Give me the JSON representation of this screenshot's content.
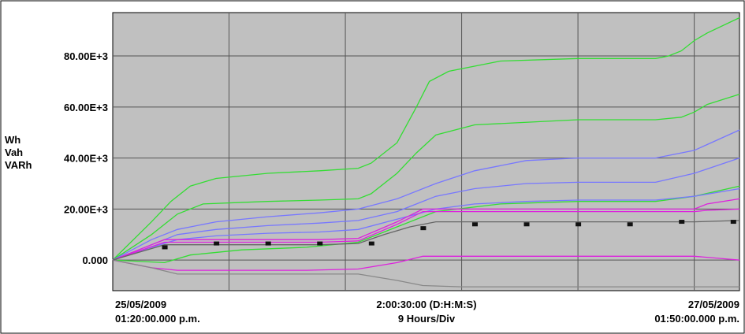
{
  "chart_data": {
    "type": "line",
    "title": "",
    "ylabel_lines": [
      "Wh",
      "Vah",
      "VARh"
    ],
    "ylim": [
      -12000,
      97000
    ],
    "yticks": [
      {
        "value": 0,
        "label": "0.000"
      },
      {
        "value": 20000,
        "label": "20.00E+3"
      },
      {
        "value": 40000,
        "label": "40.00E+3"
      },
      {
        "value": 60000,
        "label": "60.00E+3"
      },
      {
        "value": 80000,
        "label": "80.00E+3"
      }
    ],
    "xlim": [
      0,
      48.5
    ],
    "x_unit": "hours",
    "x_gridlines": [
      9,
      18,
      27,
      36,
      45
    ],
    "x_labels": {
      "start_date": "25/05/2009",
      "start_time": "01:20:00.000 p.m.",
      "span": "2:00:30:00 (D:H:M:S)",
      "div": "9 Hours/Div",
      "end_date": "27/05/2009",
      "end_time": "01:50:00.000 p.m."
    },
    "background": "#c0c0c0",
    "grid": true,
    "series": [
      {
        "color": "#33dd33",
        "x": [
          0,
          3,
          4.5,
          6,
          8,
          12,
          16,
          19,
          20,
          22,
          23.5,
          24.5,
          26,
          30,
          36,
          42,
          43,
          44,
          45,
          46,
          48.5
        ],
        "y": [
          0,
          15000,
          23000,
          29000,
          32000,
          34000,
          35000,
          36000,
          38000,
          46000,
          60000,
          70000,
          74000,
          78000,
          79000,
          79000,
          80000,
          82000,
          86000,
          89000,
          95000
        ]
      },
      {
        "color": "#33dd33",
        "x": [
          0,
          3,
          5,
          7,
          12,
          16,
          19,
          20,
          22,
          23.5,
          25,
          28,
          36,
          42,
          44,
          45,
          46,
          48.5
        ],
        "y": [
          0,
          10000,
          18000,
          22000,
          23000,
          23500,
          24000,
          26000,
          34000,
          42000,
          49000,
          53000,
          55000,
          55000,
          56000,
          58000,
          61000,
          65000
        ]
      },
      {
        "color": "#33dd33",
        "x": [
          0,
          4,
          6,
          10,
          15,
          19,
          22,
          25,
          30,
          36,
          42,
          45,
          48.5
        ],
        "y": [
          0,
          -1000,
          2000,
          4000,
          5000,
          7000,
          13000,
          19000,
          22000,
          23000,
          23000,
          25000,
          29000
        ]
      },
      {
        "color": "#7777ff",
        "x": [
          0,
          3,
          5,
          8,
          12,
          16,
          19,
          22,
          25,
          28,
          32,
          36,
          42,
          45,
          48.5
        ],
        "y": [
          0,
          8000,
          12000,
          15000,
          17000,
          18500,
          20000,
          24000,
          30000,
          35000,
          39000,
          40000,
          40000,
          43000,
          51000
        ]
      },
      {
        "color": "#7777ff",
        "x": [
          0,
          3,
          5,
          8,
          12,
          16,
          19,
          22,
          25,
          28,
          32,
          36,
          42,
          45,
          48.5
        ],
        "y": [
          0,
          6000,
          10000,
          12000,
          13500,
          14500,
          15500,
          19000,
          25000,
          28000,
          30000,
          30500,
          30500,
          34000,
          40000
        ]
      },
      {
        "color": "#7777ff",
        "x": [
          0,
          3,
          5,
          8,
          12,
          16,
          19,
          22,
          25,
          28,
          32,
          36,
          42,
          45,
          48.5
        ],
        "y": [
          0,
          5000,
          8000,
          9500,
          10500,
          11000,
          12000,
          16000,
          20000,
          22000,
          23000,
          23500,
          23500,
          25000,
          28000
        ]
      },
      {
        "color": "#dd22dd",
        "x": [
          0,
          2,
          4,
          16,
          19,
          22,
          24,
          45,
          46,
          48.5
        ],
        "y": [
          0,
          4000,
          8000,
          8000,
          8500,
          15000,
          20000,
          20000,
          22000,
          24000
        ]
      },
      {
        "color": "#dd22dd",
        "x": [
          0,
          2,
          4,
          16,
          19,
          22,
          24,
          45,
          46,
          48.5
        ],
        "y": [
          0,
          3500,
          7000,
          7000,
          7500,
          14000,
          19000,
          19000,
          19500,
          20000
        ]
      },
      {
        "color": "#dd22dd",
        "x": [
          0,
          3,
          5,
          10,
          15,
          19,
          22,
          24,
          45,
          48.5
        ],
        "y": [
          0,
          -3000,
          -4000,
          -4000,
          -4000,
          -3500,
          -1000,
          1500,
          1500,
          0
        ]
      },
      {
        "color": "#888888",
        "x": [
          0,
          3,
          5,
          15,
          19,
          22,
          24,
          27,
          48.5
        ],
        "y": [
          0,
          -3000,
          -5500,
          -5500,
          -5500,
          -8000,
          -10000,
          -10500,
          -10500
        ]
      },
      {
        "color": "#666666",
        "x": [
          0,
          2,
          4,
          16,
          19,
          21,
          23,
          25,
          45,
          48.5
        ],
        "y": [
          0,
          3000,
          6000,
          6000,
          6500,
          10000,
          13000,
          15000,
          15000,
          15500
        ]
      }
    ],
    "markers": {
      "color": "#111111",
      "x": [
        4,
        8,
        12,
        16,
        20,
        24,
        28,
        32,
        36,
        40,
        44,
        48
      ],
      "y": [
        5000,
        6500,
        6500,
        6500,
        6500,
        12500,
        14000,
        14000,
        14000,
        14000,
        15000,
        15000
      ]
    }
  }
}
